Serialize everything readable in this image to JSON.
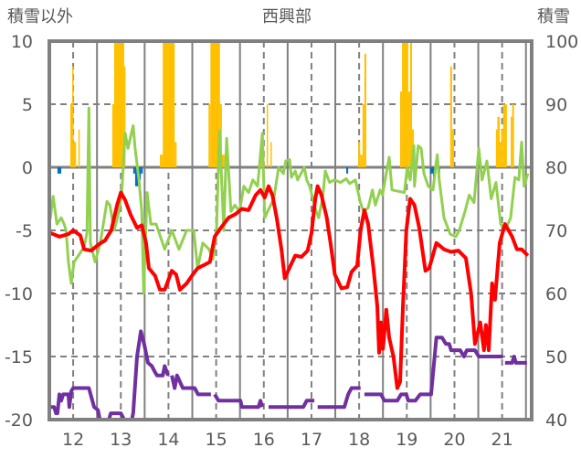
{
  "chart_data": {
    "type": "line",
    "title": "西興部",
    "ylabel_left": "積雪以外",
    "ylabel_right": "積雪",
    "xlim": [
      11.5,
      21.62
    ],
    "ylim_left": [
      -20,
      10
    ],
    "ylim_right": [
      40,
      100
    ],
    "x_ticks": [
      "12",
      "13",
      "14",
      "15",
      "16",
      "17",
      "18",
      "19",
      "20",
      "21"
    ],
    "x_tick_values": [
      12,
      13,
      14,
      15,
      16,
      17,
      18,
      19,
      20,
      21
    ],
    "y_left_ticks": [
      "10",
      "5",
      "0",
      "-5",
      "-10",
      "-15",
      "-20"
    ],
    "y_left_tick_values": [
      10,
      5,
      0,
      -5,
      -10,
      -15,
      -20
    ],
    "y_right_ticks": [
      "100",
      "90",
      "80",
      "70",
      "60",
      "50",
      "40"
    ],
    "y_right_tick_values": [
      100,
      90,
      80,
      70,
      60,
      50,
      40
    ],
    "grid": true,
    "colors": {
      "orange": "#FFC000",
      "blue": "#0070C0",
      "red": "#FF0000",
      "green": "#92D050",
      "purple": "#7030A0",
      "grid": "#808080"
    },
    "bars_orange": [
      [
        11.94,
        11.98,
        5
      ],
      [
        11.98,
        12.0,
        8
      ],
      [
        12.0,
        12.06,
        2
      ],
      [
        12.11,
        12.13,
        3
      ],
      [
        12.82,
        12.86,
        5
      ],
      [
        12.86,
        13.07,
        10
      ],
      [
        13.07,
        13.09,
        8
      ],
      [
        13.82,
        13.88,
        1
      ],
      [
        13.88,
        14.13,
        10
      ],
      [
        14.13,
        14.17,
        2
      ],
      [
        14.84,
        14.88,
        5
      ],
      [
        14.88,
        15.08,
        10
      ],
      [
        15.08,
        15.12,
        5
      ],
      [
        15.12,
        15.18,
        1
      ],
      [
        15.93,
        15.97,
        2
      ],
      [
        16.06,
        16.08,
        5
      ],
      [
        16.14,
        16.16,
        2
      ],
      [
        17.98,
        18.02,
        2
      ],
      [
        18.02,
        18.07,
        1
      ],
      [
        18.07,
        18.11,
        5
      ],
      [
        18.11,
        18.15,
        9
      ],
      [
        18.86,
        18.9,
        6
      ],
      [
        18.9,
        19.03,
        10
      ],
      [
        19.03,
        19.07,
        6
      ],
      [
        19.07,
        19.11,
        10
      ],
      [
        19.11,
        19.15,
        3
      ],
      [
        19.91,
        19.95,
        8
      ],
      [
        19.95,
        19.99,
        3
      ],
      [
        20.87,
        20.9,
        3
      ],
      [
        20.9,
        20.95,
        4
      ],
      [
        20.95,
        20.98,
        2
      ],
      [
        20.98,
        21.02,
        3
      ],
      [
        21.02,
        21.1,
        5
      ],
      [
        21.18,
        21.21,
        4
      ],
      [
        21.21,
        21.25,
        5
      ]
    ],
    "bars_blue": [
      [
        11.67,
        11.75,
        -0.5
      ],
      [
        13.26,
        13.3,
        -0.5
      ],
      [
        13.3,
        13.38,
        -1.5
      ],
      [
        13.38,
        13.42,
        -1.0
      ],
      [
        13.42,
        13.46,
        -0.5
      ],
      [
        17.73,
        17.77,
        -0.5
      ],
      [
        19.49,
        19.55,
        -0.5
      ],
      [
        19.55,
        19.59,
        -1.5
      ],
      [
        19.59,
        19.62,
        -0.5
      ],
      [
        19.66,
        19.7,
        -0.5
      ]
    ],
    "series_red": [
      [
        11.52,
        -5.2
      ],
      [
        11.71,
        -5.5
      ],
      [
        11.9,
        -5.3
      ],
      [
        12.0,
        -5.0
      ],
      [
        12.15,
        -5.4
      ],
      [
        12.23,
        -6.5
      ],
      [
        12.38,
        -6.6
      ],
      [
        12.54,
        -6.1
      ],
      [
        12.67,
        -5.8
      ],
      [
        12.8,
        -5.0
      ],
      [
        12.92,
        -3.0
      ],
      [
        13.0,
        -2.0
      ],
      [
        13.09,
        -2.6
      ],
      [
        13.21,
        -3.8
      ],
      [
        13.34,
        -4.8
      ],
      [
        13.44,
        -4.6
      ],
      [
        13.53,
        -6.0
      ],
      [
        13.59,
        -8.0
      ],
      [
        13.72,
        -8.6
      ],
      [
        13.82,
        -9.7
      ],
      [
        13.92,
        -9.7
      ],
      [
        14.07,
        -8.2
      ],
      [
        14.16,
        -8.5
      ],
      [
        14.24,
        -9.7
      ],
      [
        14.38,
        -9.2
      ],
      [
        14.49,
        -8.6
      ],
      [
        14.61,
        -8.0
      ],
      [
        14.72,
        -7.8
      ],
      [
        14.87,
        -7.5
      ],
      [
        14.97,
        -5.5
      ],
      [
        15.1,
        -4.8
      ],
      [
        15.26,
        -4.0
      ],
      [
        15.41,
        -3.7
      ],
      [
        15.54,
        -3.3
      ],
      [
        15.68,
        -3.4
      ],
      [
        15.83,
        -2.2
      ],
      [
        15.93,
        -1.8
      ],
      [
        16.02,
        -2.4
      ],
      [
        16.1,
        -1.5
      ],
      [
        16.18,
        -2.2
      ],
      [
        16.27,
        -4.0
      ],
      [
        16.37,
        -6.5
      ],
      [
        16.44,
        -8.8
      ],
      [
        16.56,
        -7.8
      ],
      [
        16.66,
        -7.0
      ],
      [
        16.79,
        -7.1
      ],
      [
        16.92,
        -6.6
      ],
      [
        17.0,
        -5.2
      ],
      [
        17.08,
        -2.5
      ],
      [
        17.13,
        -1.5
      ],
      [
        17.21,
        -2.2
      ],
      [
        17.32,
        -4.0
      ],
      [
        17.4,
        -6.0
      ],
      [
        17.49,
        -8.5
      ],
      [
        17.63,
        -9.6
      ],
      [
        17.75,
        -9.5
      ],
      [
        17.84,
        -8.3
      ],
      [
        17.96,
        -7.8
      ],
      [
        18.03,
        -5.0
      ],
      [
        18.11,
        -3.4
      ],
      [
        18.19,
        -4.5
      ],
      [
        18.3,
        -8.0
      ],
      [
        18.38,
        -11
      ],
      [
        18.42,
        -14.7
      ],
      [
        18.46,
        -12.3
      ],
      [
        18.5,
        -14.4
      ],
      [
        18.57,
        -11.3
      ],
      [
        18.63,
        -13.5
      ],
      [
        18.72,
        -15
      ],
      [
        18.8,
        -17.5
      ],
      [
        18.86,
        -17
      ],
      [
        18.92,
        -11
      ],
      [
        18.99,
        -5
      ],
      [
        19.07,
        -2.5
      ],
      [
        19.16,
        -3.0
      ],
      [
        19.26,
        -4.8
      ],
      [
        19.39,
        -8.2
      ],
      [
        19.47,
        -8.0
      ],
      [
        19.62,
        -6.0
      ],
      [
        19.78,
        -6.5
      ],
      [
        19.93,
        -6.7
      ],
      [
        20.08,
        -6.6
      ],
      [
        20.24,
        -7.2
      ],
      [
        20.35,
        -10
      ],
      [
        20.43,
        -14
      ],
      [
        20.54,
        -12.3
      ],
      [
        20.62,
        -14.5
      ],
      [
        20.66,
        -12.5
      ],
      [
        20.72,
        -14.5
      ],
      [
        20.79,
        -9.2
      ],
      [
        20.85,
        -10.5
      ],
      [
        20.95,
        -6
      ],
      [
        21.06,
        -4.5
      ],
      [
        21.21,
        -5.5
      ],
      [
        21.31,
        -6.5
      ],
      [
        21.41,
        -6.5
      ],
      [
        21.54,
        -7.0
      ]
    ],
    "series_green": [
      [
        11.52,
        -4.1
      ],
      [
        11.58,
        -2.3
      ],
      [
        11.66,
        -4.5
      ],
      [
        11.75,
        -4.0
      ],
      [
        11.81,
        -4.5
      ],
      [
        11.85,
        -5.0
      ],
      [
        11.9,
        -7.5
      ],
      [
        11.96,
        -9.2
      ],
      [
        12.02,
        -7.5
      ],
      [
        12.11,
        -7.0
      ],
      [
        12.23,
        -6.3
      ],
      [
        12.29,
        -5.2
      ],
      [
        12.33,
        4.7
      ],
      [
        12.36,
        -6.0
      ],
      [
        12.46,
        -7.5
      ],
      [
        12.57,
        -6.0
      ],
      [
        12.71,
        -2.7
      ],
      [
        12.77,
        -3.0
      ],
      [
        12.86,
        -5.0
      ],
      [
        12.96,
        -3.5
      ],
      [
        13.02,
        -2.0
      ],
      [
        13.09,
        2.7
      ],
      [
        13.15,
        1.5
      ],
      [
        13.21,
        2.5
      ],
      [
        13.26,
        3.3
      ],
      [
        13.3,
        1.5
      ],
      [
        13.38,
        -1.0
      ],
      [
        13.44,
        -3.5
      ],
      [
        13.48,
        -10
      ],
      [
        13.55,
        -2.0
      ],
      [
        13.63,
        -4.5
      ],
      [
        13.74,
        -4.5
      ],
      [
        13.92,
        -6.5
      ],
      [
        14.07,
        -5.0
      ],
      [
        14.22,
        -6.5
      ],
      [
        14.38,
        -5.0
      ],
      [
        14.53,
        -5.0
      ],
      [
        14.61,
        -8.0
      ],
      [
        14.72,
        -6.0
      ],
      [
        14.85,
        -6.5
      ],
      [
        14.93,
        -7.3
      ],
      [
        15.01,
        -4.8
      ],
      [
        15.07,
        2.9
      ],
      [
        15.16,
        -5.0
      ],
      [
        15.22,
        2.3
      ],
      [
        15.31,
        -3.5
      ],
      [
        15.39,
        -3.0
      ],
      [
        15.49,
        -3.5
      ],
      [
        15.58,
        -1.5
      ],
      [
        15.68,
        -2.0
      ],
      [
        15.77,
        -1.0
      ],
      [
        15.87,
        -1.5
      ],
      [
        15.97,
        2.7
      ],
      [
        16.02,
        -4.0
      ],
      [
        16.08,
        -3.5
      ],
      [
        16.21,
        -2.5
      ],
      [
        16.31,
        0
      ],
      [
        16.41,
        -0.5
      ],
      [
        16.46,
        0.5
      ],
      [
        16.54,
        0.6
      ],
      [
        16.58,
        -0.8
      ],
      [
        16.66,
        -0.3
      ],
      [
        16.71,
        -1.0
      ],
      [
        16.85,
        0
      ],
      [
        16.9,
        -1.0
      ],
      [
        16.96,
        -1.5
      ],
      [
        17.1,
        -3.5
      ],
      [
        17.15,
        -4.0
      ],
      [
        17.23,
        -2.5
      ],
      [
        17.29,
        -0.3
      ],
      [
        17.38,
        -1.2
      ],
      [
        17.48,
        -1.0
      ],
      [
        17.61,
        -1.2
      ],
      [
        17.73,
        -0.9
      ],
      [
        17.8,
        -1.3
      ],
      [
        17.92,
        -1.0
      ],
      [
        18.02,
        -2.7
      ],
      [
        18.09,
        -3.5
      ],
      [
        18.19,
        -3.2
      ],
      [
        18.28,
        -1.8
      ],
      [
        18.34,
        -3.0
      ],
      [
        18.44,
        -1.8
      ],
      [
        18.49,
        -2.2
      ],
      [
        18.63,
        0.8
      ],
      [
        18.69,
        -1.8
      ],
      [
        18.82,
        -1.9
      ],
      [
        18.95,
        -2.0
      ],
      [
        19.01,
        0
      ],
      [
        19.07,
        -1.0
      ],
      [
        19.15,
        1.7
      ],
      [
        19.16,
        -1.5
      ],
      [
        19.24,
        1.7
      ],
      [
        19.3,
        1.5
      ],
      [
        19.36,
        -0.5
      ],
      [
        19.45,
        -1.5
      ],
      [
        19.55,
        -1.8
      ],
      [
        19.62,
        0.5
      ],
      [
        19.64,
        1.0
      ],
      [
        19.68,
        -1.0
      ],
      [
        19.78,
        -4.0
      ],
      [
        19.91,
        -5.3
      ],
      [
        20.03,
        -5.5
      ],
      [
        20.1,
        -5.0
      ],
      [
        20.22,
        -3.5
      ],
      [
        20.31,
        -2.2
      ],
      [
        20.41,
        -2.8
      ],
      [
        20.51,
        1.5
      ],
      [
        20.58,
        -1.0
      ],
      [
        20.68,
        0.5
      ],
      [
        20.77,
        -2.5
      ],
      [
        20.87,
        -1.2
      ],
      [
        20.97,
        -4.5
      ],
      [
        21.06,
        -5.0
      ],
      [
        21.18,
        -4.0
      ],
      [
        21.27,
        -0.8
      ],
      [
        21.35,
        -1.0
      ],
      [
        21.41,
        2.0
      ],
      [
        21.46,
        -1.5
      ],
      [
        21.54,
        -0.5
      ]
    ],
    "series_purple_right_axis": [
      [
        11.52,
        42
      ],
      [
        11.6,
        42
      ],
      [
        11.64,
        41
      ],
      [
        11.67,
        41
      ],
      [
        11.71,
        44
      ],
      [
        11.75,
        43
      ],
      [
        11.79,
        44
      ],
      [
        11.85,
        44
      ],
      [
        11.9,
        44
      ],
      [
        11.92,
        42
      ],
      [
        11.96,
        44.5
      ],
      [
        12.0,
        45
      ],
      [
        12.33,
        45
      ],
      [
        12.44,
        42
      ],
      [
        12.52,
        41.5
      ],
      [
        12.56,
        40
      ],
      [
        12.75,
        40
      ],
      [
        12.79,
        41
      ],
      [
        13.0,
        41
      ],
      [
        13.07,
        40
      ],
      [
        13.23,
        40
      ],
      [
        13.26,
        41
      ],
      [
        13.34,
        50
      ],
      [
        13.42,
        54
      ],
      [
        13.49,
        52
      ],
      [
        13.57,
        49
      ],
      [
        13.65,
        48.5
      ],
      [
        13.72,
        47.5
      ],
      [
        13.76,
        47
      ],
      [
        13.88,
        47
      ],
      [
        13.92,
        48.5
      ],
      [
        13.99,
        47
      ],
      null,
      [
        14.07,
        47
      ],
      [
        14.13,
        45
      ],
      [
        14.18,
        47
      ],
      [
        14.3,
        45
      ],
      [
        14.55,
        45
      ],
      [
        14.62,
        44
      ],
      [
        14.89,
        44
      ],
      null,
      [
        14.97,
        44
      ],
      [
        15.05,
        43
      ],
      [
        15.51,
        43
      ],
      [
        15.54,
        42
      ],
      [
        15.89,
        42
      ],
      [
        15.93,
        43
      ],
      [
        15.97,
        42
      ],
      null,
      [
        16.1,
        42
      ],
      [
        16.83,
        42
      ],
      [
        16.9,
        43
      ],
      [
        17.06,
        43
      ],
      null,
      [
        17.13,
        42
      ],
      [
        17.69,
        42
      ],
      [
        17.77,
        44
      ],
      [
        17.84,
        45
      ],
      [
        18.03,
        45
      ],
      null,
      [
        18.11,
        44
      ],
      [
        18.46,
        44
      ],
      [
        18.53,
        43
      ],
      [
        18.8,
        43
      ],
      [
        18.88,
        44
      ],
      [
        18.99,
        44
      ],
      [
        19.03,
        43
      ],
      [
        19.18,
        43
      ],
      [
        19.28,
        44
      ],
      [
        19.51,
        44
      ],
      [
        19.62,
        53
      ],
      [
        19.74,
        53
      ],
      [
        19.82,
        52
      ],
      [
        19.89,
        52
      ],
      [
        19.93,
        51
      ],
      [
        20.12,
        51
      ],
      [
        20.2,
        50
      ],
      [
        20.26,
        51
      ],
      [
        20.43,
        51
      ],
      [
        20.51,
        50
      ],
      [
        21.02,
        50
      ],
      null,
      [
        21.06,
        49
      ],
      [
        21.21,
        49
      ],
      [
        21.25,
        50
      ],
      [
        21.29,
        49
      ],
      [
        21.52,
        49
      ]
    ]
  }
}
